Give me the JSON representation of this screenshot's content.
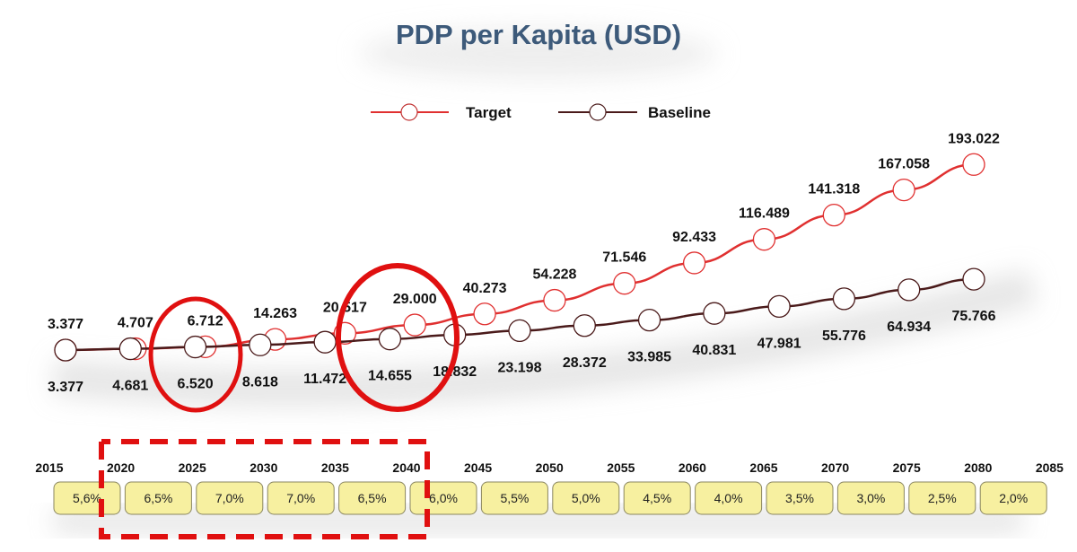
{
  "chart_data": {
    "type": "line",
    "title": "PDP per Kapita (USD)",
    "legend_position": "top",
    "grid": false,
    "x_ticks": [
      "2015",
      "2020",
      "2025",
      "2030",
      "2035",
      "2040",
      "2045",
      "2050",
      "2055",
      "2060",
      "2065",
      "2070",
      "2075",
      "2080",
      "2085"
    ],
    "series": [
      {
        "name": "Target",
        "color": "#e03030",
        "x": [
          2015,
          2020,
          2025,
          2030,
          2035,
          2040,
          2045,
          2050,
          2055,
          2060,
          2065,
          2070,
          2075,
          2080
        ],
        "values": [
          3377,
          4707,
          6712,
          14263,
          20517,
          29000,
          40273,
          54228,
          71546,
          92433,
          116489,
          141318,
          167058,
          193022
        ],
        "labels": [
          "3.377",
          "4.707",
          "6.712",
          "14.263",
          "20.517",
          "29.000",
          "40.273",
          "54.228",
          "71.546",
          "92.433",
          "116.489",
          "141.318",
          "167.058",
          "193.022"
        ]
      },
      {
        "name": "Baseline",
        "color": "#4a1a1a",
        "values": [
          3377,
          4681,
          6520,
          8618,
          11472,
          14655,
          18832,
          23198,
          28372,
          33985,
          40831,
          47981,
          55776,
          64934,
          75766
        ],
        "labels": [
          "3.377",
          "4.681",
          "6.520",
          "8.618",
          "11.472",
          "14.655",
          "18.832",
          "23.198",
          "28.372",
          "33.985",
          "40.831",
          "47.981",
          "55.776",
          "64.934",
          "75.766"
        ]
      }
    ],
    "growth_rates": [
      "5,6%",
      "6,5%",
      "7,0%",
      "7,0%",
      "6,5%",
      "6,0%",
      "5,5%",
      "5,0%",
      "4,5%",
      "4,0%",
      "3,5%",
      "3,0%",
      "2,5%",
      "2,0%"
    ],
    "annotation_color": "#e01010",
    "box_color": "#f7f0a0"
  }
}
